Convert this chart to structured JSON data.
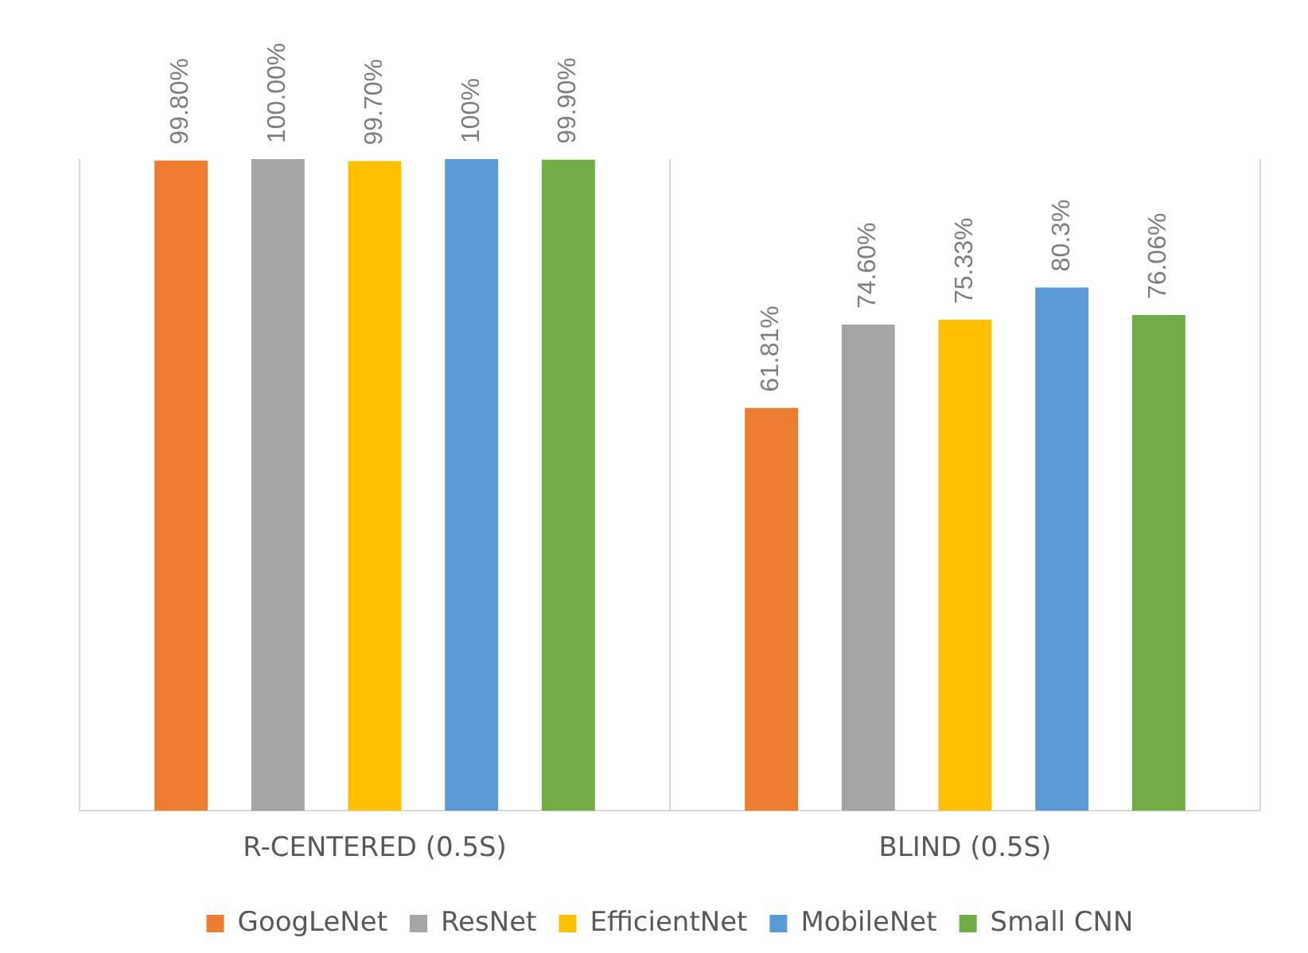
{
  "chart_data": {
    "type": "bar",
    "categories": [
      "R-CENTERED (0.5S)",
      "BLIND (0.5S)"
    ],
    "series": [
      {
        "name": "GoogLeNet",
        "color": "#ed7d31",
        "values": [
          99.8,
          61.81
        ],
        "value_labels": [
          "99.80%",
          "61.81%"
        ]
      },
      {
        "name": "ResNet",
        "color": "#a5a5a5",
        "values": [
          100,
          74.6
        ],
        "value_labels": [
          "100.00%",
          "74.60%"
        ]
      },
      {
        "name": "EfficientNet",
        "color": "#ffc000",
        "values": [
          99.7,
          75.33
        ],
        "value_labels": [
          "99.70%",
          "75.33%"
        ]
      },
      {
        "name": "MobileNet",
        "color": "#5b9bd5",
        "values": [
          100,
          80.3
        ],
        "value_labels": [
          "100%",
          "80.3%"
        ]
      },
      {
        "name": "Small CNN",
        "color": "#70ad47",
        "values": [
          99.9,
          76.06
        ],
        "value_labels": [
          "99.90%",
          "76.06%"
        ]
      }
    ],
    "ylim": [
      0,
      100
    ],
    "tick_labels": "x",
    "grid": "x",
    "legend": "bottom"
  }
}
